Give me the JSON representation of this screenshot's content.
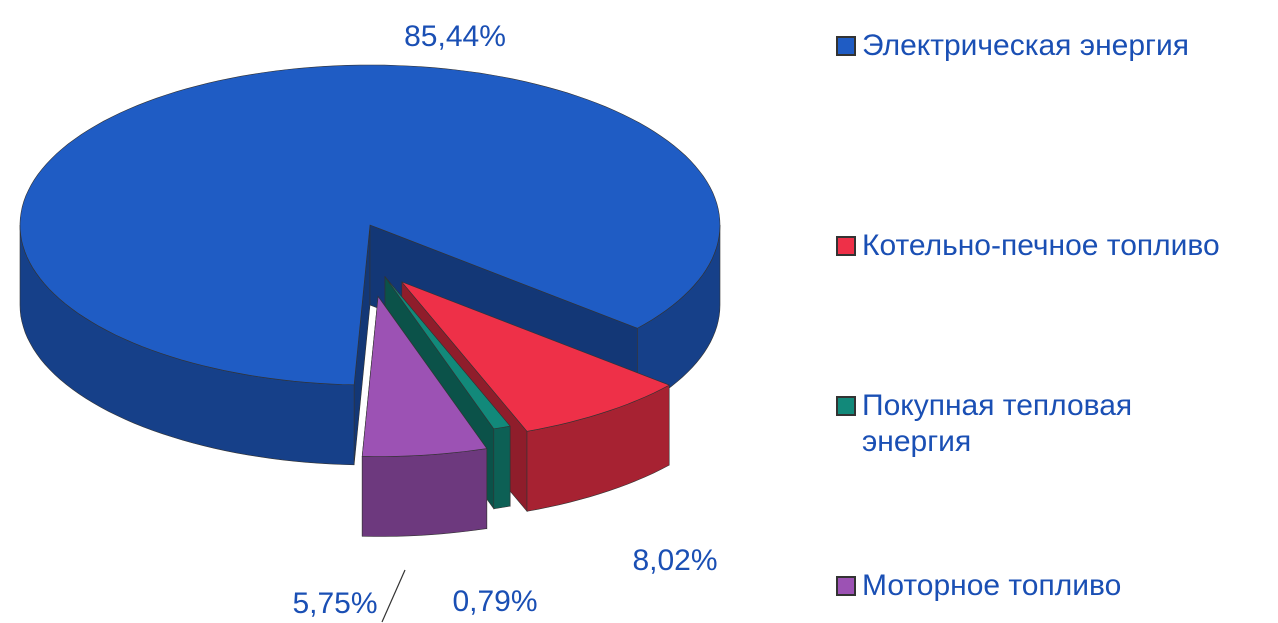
{
  "chart_data": {
    "type": "pie",
    "categories": [
      "Электрическая энергия",
      "Котельно-печное топливо",
      "Покупная тепловая энергия",
      "Моторное топливо"
    ],
    "values": [
      85.44,
      8.02,
      0.79,
      5.75
    ],
    "value_labels": [
      "85,44%",
      "8,02%",
      "0,79%",
      "5,75%"
    ],
    "colors": [
      "#1f5cc4",
      "#ee3048",
      "#12897a",
      "#9c52b4"
    ],
    "legend": "right"
  }
}
